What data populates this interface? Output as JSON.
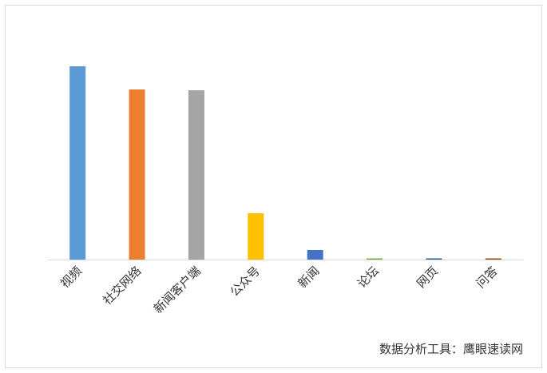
{
  "chart_data": {
    "type": "bar",
    "categories": [
      "视频",
      "社交网络",
      "新闻客户端",
      "公众号",
      "新闻",
      "论坛",
      "网页",
      "问答"
    ],
    "values": [
      242,
      213,
      212,
      58,
      12,
      1.5,
      1.5,
      1.5
    ],
    "colors": [
      "#5b9bd5",
      "#ed7d31",
      "#a5a5a5",
      "#ffc000",
      "#4472c4",
      "#70ad47",
      "#255e91",
      "#9e480e"
    ],
    "ylim": [
      0,
      250
    ],
    "annotation": "数据分析工具：鹰眼速读网"
  }
}
